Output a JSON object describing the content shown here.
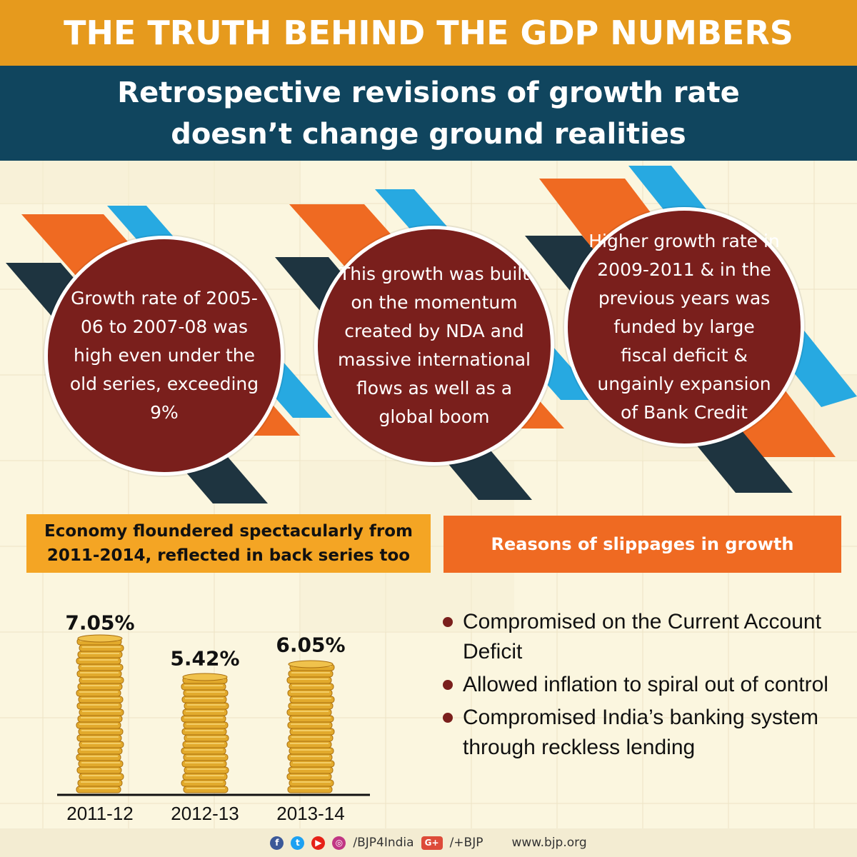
{
  "header": {
    "title": "THE TRUTH BEHIND THE GDP NUMBERS",
    "subtitle_line1": "Retrospective revisions of growth rate",
    "subtitle_line2": "doesn’t change ground realities"
  },
  "bubbles": [
    {
      "text": "Growth rate of 2005-06 to 2007-08 was high even under the old series, exceeding 9%"
    },
    {
      "text": "This growth was built on the momentum created by NDA and massive international flows as well as a global boom"
    },
    {
      "text": "Higher growth rate in 2009-2011 & in the previous years was funded by large fiscal deficit & ungainly expansion of Bank Credit"
    }
  ],
  "chart_label": {
    "line1": "Economy floundered spectacularly from",
    "line2": "2011-2014, reflected in back series too"
  },
  "reasons_label": "Reasons of slippages in growth",
  "reasons": [
    "Compromised on the Current Account Deficit",
    "Allowed inflation to spiral out of control",
    "Compromised India’s banking system through reckless lending"
  ],
  "chart_data": {
    "type": "bar",
    "categories": [
      "2011-12",
      "2012-13",
      "2013-14"
    ],
    "values": [
      7.05,
      5.42,
      6.05
    ],
    "data_labels": [
      "7.05%",
      "5.42%",
      "6.05%"
    ],
    "title": "",
    "xlabel": "",
    "ylabel": ""
  },
  "footer": {
    "handle": "/BJP4India",
    "gplus": "/+BJP",
    "website": "www.bjp.org"
  },
  "colors": {
    "title_bar": "#e69a1d",
    "subtitle_bar": "#10455e",
    "bubble": "#7a1f1c",
    "stripe_orange": "#ef6a22",
    "stripe_blue": "#27a9e1",
    "stripe_dark": "#1e3440",
    "label_yellow": "#f4a524",
    "label_orange": "#ef6a22",
    "coin_gold": "#e2aa2c"
  }
}
